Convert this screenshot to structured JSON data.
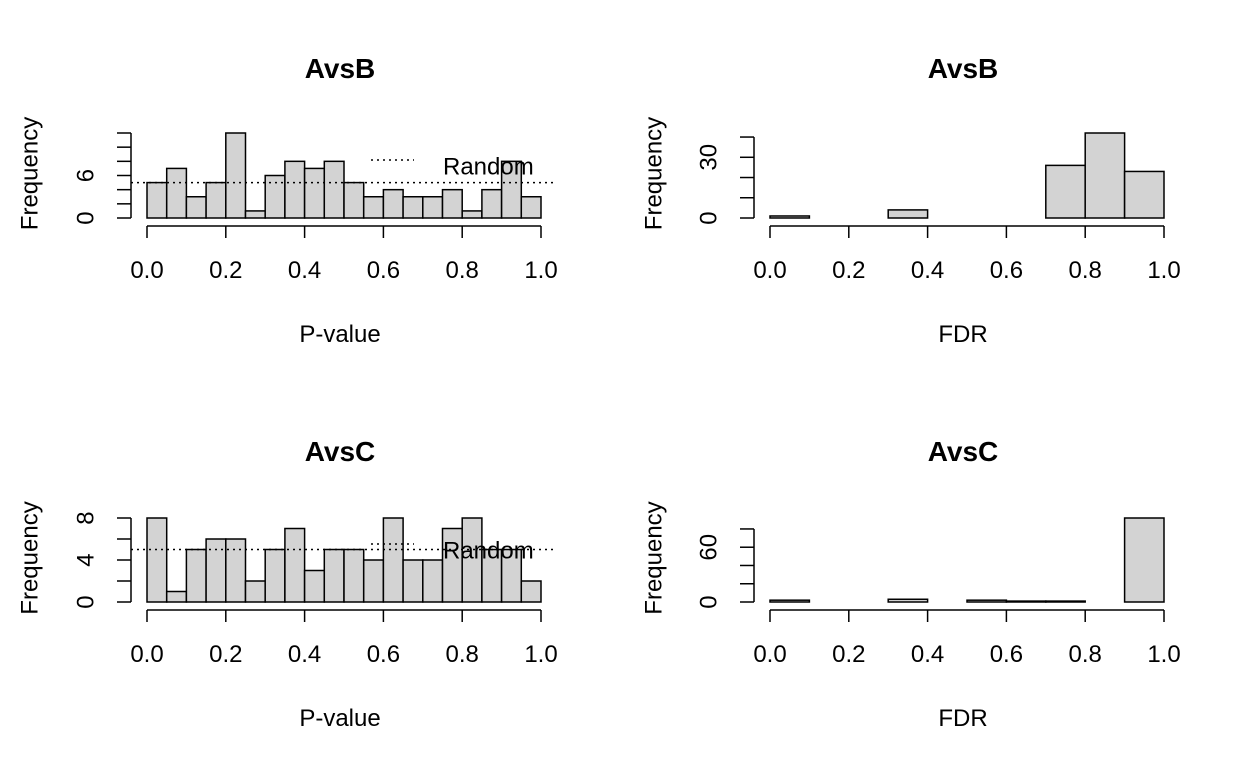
{
  "chart_data": [
    {
      "type": "bar",
      "title": "AvsB",
      "xlabel": "P-value",
      "ylabel": "Frequency",
      "bin_edges": [
        0,
        0.05,
        0.1,
        0.15,
        0.2,
        0.25,
        0.3,
        0.35,
        0.4,
        0.45,
        0.5,
        0.55,
        0.6,
        0.65,
        0.7,
        0.75,
        0.8,
        0.85,
        0.9,
        0.95,
        1.0
      ],
      "values": [
        5,
        7,
        3,
        5,
        12,
        1,
        6,
        8,
        7,
        8,
        5,
        3,
        4,
        3,
        3,
        4,
        1,
        4,
        8,
        3
      ],
      "xlim": [
        0,
        1
      ],
      "ylim": [
        0,
        12
      ],
      "xticks": [
        "0.0",
        "0.2",
        "0.4",
        "0.6",
        "0.8",
        "1.0"
      ],
      "yticks": [
        "0",
        "6"
      ],
      "ytick_values": [
        0,
        6
      ],
      "yaxis_minor": [
        0,
        2,
        4,
        6,
        8,
        10,
        12
      ],
      "reference_line": {
        "y": 5,
        "style": "dotted",
        "legend": "Random"
      },
      "legend_position": "top-right"
    },
    {
      "type": "bar",
      "title": "AvsB",
      "xlabel": "FDR",
      "ylabel": "Frequency",
      "bin_edges": [
        0,
        0.1,
        0.2,
        0.3,
        0.4,
        0.5,
        0.6,
        0.7,
        0.8,
        0.9,
        1.0
      ],
      "values": [
        1,
        0,
        0,
        4,
        0,
        0,
        0,
        26,
        42,
        23
      ],
      "xlim": [
        0,
        1
      ],
      "ylim": [
        0,
        42
      ],
      "xticks": [
        "0.0",
        "0.2",
        "0.4",
        "0.6",
        "0.8",
        "1.0"
      ],
      "yticks": [
        "0",
        "30"
      ],
      "ytick_values": [
        0,
        30
      ],
      "yaxis_minor": [
        0,
        10,
        20,
        30,
        40
      ]
    },
    {
      "type": "bar",
      "title": "AvsC",
      "xlabel": "P-value",
      "ylabel": "Frequency",
      "bin_edges": [
        0,
        0.05,
        0.1,
        0.15,
        0.2,
        0.25,
        0.3,
        0.35,
        0.4,
        0.45,
        0.5,
        0.55,
        0.6,
        0.65,
        0.7,
        0.75,
        0.8,
        0.85,
        0.9,
        0.95,
        1.0
      ],
      "values": [
        8,
        1,
        5,
        6,
        6,
        2,
        5,
        7,
        3,
        5,
        5,
        4,
        8,
        4,
        4,
        7,
        8,
        5,
        5,
        2
      ],
      "xlim": [
        0,
        1
      ],
      "ylim": [
        0,
        8
      ],
      "xticks": [
        "0.0",
        "0.2",
        "0.4",
        "0.6",
        "0.8",
        "1.0"
      ],
      "yticks": [
        "0",
        "4",
        "8"
      ],
      "ytick_values": [
        0,
        4,
        8
      ],
      "yaxis_minor": [
        0,
        2,
        4,
        6,
        8
      ],
      "reference_line": {
        "y": 5,
        "style": "dotted",
        "legend": "Random"
      },
      "legend_position": "top-right"
    },
    {
      "type": "bar",
      "title": "AvsC",
      "xlabel": "FDR",
      "ylabel": "Frequency",
      "bin_edges": [
        0,
        0.1,
        0.2,
        0.3,
        0.4,
        0.5,
        0.6,
        0.7,
        0.8,
        0.9,
        1.0
      ],
      "values": [
        2,
        0,
        0,
        3,
        0,
        2,
        1,
        1,
        0,
        92
      ],
      "xlim": [
        0,
        1
      ],
      "ylim": [
        0,
        92
      ],
      "xticks": [
        "0.0",
        "0.2",
        "0.4",
        "0.6",
        "0.8",
        "1.0"
      ],
      "yticks": [
        "0",
        "60"
      ],
      "ytick_values": [
        0,
        60
      ],
      "yaxis_minor": [
        0,
        20,
        40,
        60,
        80
      ]
    }
  ]
}
